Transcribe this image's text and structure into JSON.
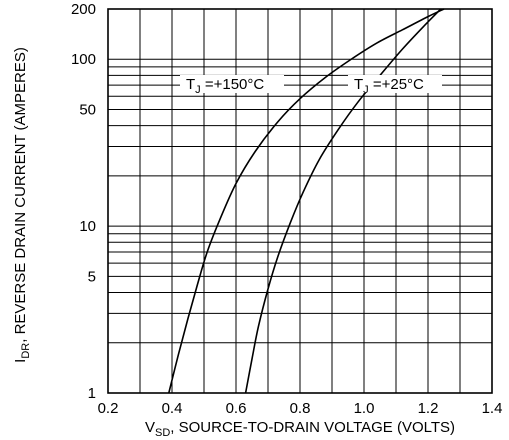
{
  "chart_data": {
    "type": "line",
    "xlabel": {
      "main": "V",
      "sub": "SD",
      "rest": ", SOURCE-TO-DRAIN VOLTAGE (VOLTS)"
    },
    "ylabel": {
      "main": "I",
      "sub": "DR",
      "rest": ", REVERSE DRAIN CURRENT (AMPERES)"
    },
    "xlim": [
      0.2,
      1.4
    ],
    "ylim": [
      1,
      200
    ],
    "yscale": "log",
    "x_ticks": [
      0.2,
      0.4,
      0.6,
      0.8,
      1.0,
      1.2,
      1.4
    ],
    "x_tick_labels": [
      "0.2",
      "0.4",
      "0.6",
      "0.8",
      "1.0",
      "1.2",
      "1.4"
    ],
    "y_ticks": [
      1,
      5,
      10,
      50,
      100,
      200
    ],
    "y_tick_labels": [
      "1",
      "5",
      "10",
      "50",
      "100",
      "200"
    ],
    "grid": true,
    "series": [
      {
        "label_main": "T",
        "label_sub": "J",
        "label_rest": " =+150°C",
        "x": [
          0.39,
          0.42,
          0.45,
          0.48,
          0.51,
          0.55,
          0.6,
          0.66,
          0.73,
          0.8,
          0.88,
          0.96,
          1.04,
          1.12,
          1.2,
          1.25
        ],
        "y": [
          1,
          1.7,
          2.8,
          4.5,
          7.0,
          11,
          18,
          28,
          42,
          58,
          78,
          100,
          125,
          150,
          180,
          200
        ]
      },
      {
        "label_main": "T",
        "label_sub": "J",
        "label_rest": " =+25°C",
        "x": [
          0.63,
          0.65,
          0.67,
          0.7,
          0.73,
          0.77,
          0.81,
          0.86,
          0.92,
          0.98,
          1.05,
          1.12,
          1.19,
          1.24
        ],
        "y": [
          1,
          1.6,
          2.5,
          4.2,
          6.5,
          10.5,
          16,
          25,
          38,
          55,
          80,
          115,
          160,
          200
        ]
      }
    ]
  }
}
